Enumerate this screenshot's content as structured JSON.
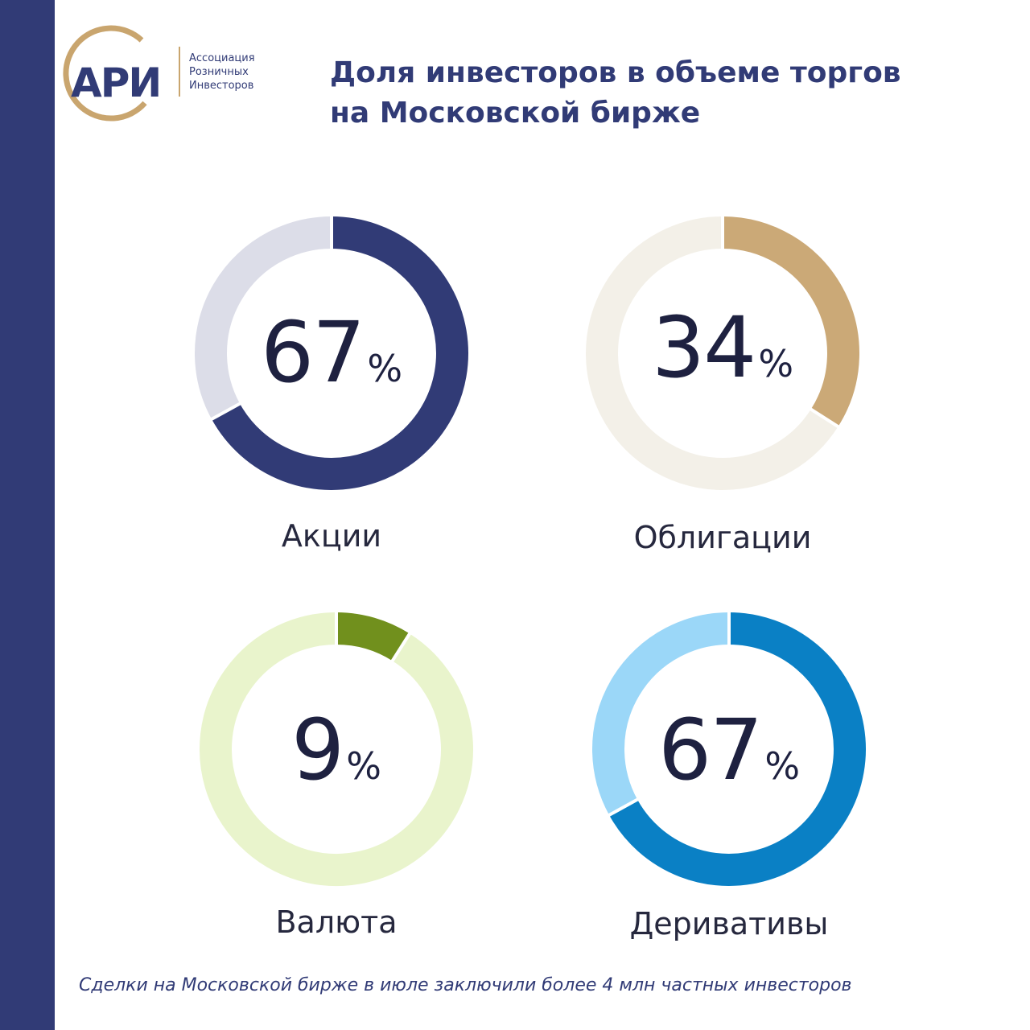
{
  "brand": {
    "logo_mark": "АРИ",
    "name_lines": [
      "Ассоциация",
      "Розничных",
      "Инвесторов"
    ],
    "colors": {
      "navy": "#313b76",
      "gold": "#c9a56e"
    }
  },
  "title_lines": [
    "Доля инвесторов в объеме торгов",
    "на Московской бирже"
  ],
  "footnote": "Сделки на Московской бирже в июле заключили более 4 млн частных инвесторов",
  "chart_data": [
    {
      "type": "pie",
      "label": "Акции",
      "value": 67,
      "unit": "%",
      "colors": {
        "fill": "#313b76",
        "track": "#dcdde8"
      }
    },
    {
      "type": "pie",
      "label": "Облигации",
      "value": 34,
      "unit": "%",
      "colors": {
        "fill": "#cba977",
        "track": "#f3f0e8"
      }
    },
    {
      "type": "pie",
      "label": "Валюта",
      "value": 9,
      "unit": "%",
      "colors": {
        "fill": "#71901d",
        "track": "#e9f4cc"
      }
    },
    {
      "type": "pie",
      "label": "Деривативы",
      "value": 67,
      "unit": "%",
      "colors": {
        "fill": "#0a80c5",
        "track": "#9bd7f8"
      }
    }
  ]
}
